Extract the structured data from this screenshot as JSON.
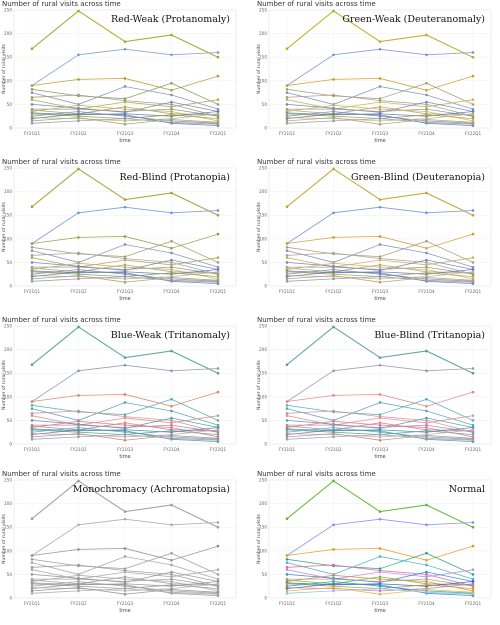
{
  "chart_data": {
    "type": "line",
    "panel_title": "Number of rural visits across time",
    "xlabel": "time",
    "ylabel": "Number of rural visits",
    "x": [
      "FY21Q1",
      "FY21Q2",
      "FY21Q3",
      "FY21Q4",
      "FY22Q1"
    ],
    "ylim": [
      0,
      250
    ],
    "yticks": [
      0,
      50,
      100,
      150,
      200,
      250
    ],
    "grid": true,
    "series": [
      {
        "values": [
          168,
          248,
          183,
          197,
          150
        ]
      },
      {
        "values": [
          90,
          155,
          167,
          155,
          160
        ]
      },
      {
        "values": [
          90,
          103,
          105,
          80,
          110
        ]
      },
      {
        "values": [
          82,
          68,
          62,
          95,
          50
        ]
      },
      {
        "values": [
          75,
          50,
          88,
          70,
          40
        ]
      },
      {
        "values": [
          65,
          70,
          58,
          50,
          25
        ]
      },
      {
        "values": [
          60,
          40,
          55,
          45,
          60
        ]
      },
      {
        "values": [
          50,
          42,
          33,
          55,
          35
        ]
      },
      {
        "values": [
          40,
          40,
          35,
          40,
          25
        ]
      },
      {
        "values": [
          38,
          30,
          45,
          30,
          28
        ]
      },
      {
        "values": [
          35,
          48,
          40,
          35,
          15
        ]
      },
      {
        "values": [
          32,
          28,
          30,
          25,
          35
        ]
      },
      {
        "values": [
          30,
          25,
          20,
          28,
          20
        ]
      },
      {
        "values": [
          25,
          35,
          25,
          15,
          10
        ]
      },
      {
        "values": [
          22,
          20,
          15,
          20,
          30
        ]
      },
      {
        "values": [
          20,
          30,
          28,
          10,
          5
        ]
      },
      {
        "values": [
          15,
          22,
          8,
          18,
          12
        ]
      },
      {
        "values": [
          10,
          15,
          20,
          12,
          8
        ]
      }
    ],
    "panels": [
      {
        "label": "Red-Weak (Protanomaly)",
        "colors": [
          "#a3a61e",
          "#7d9bd6",
          "#b39a2a",
          "#8a9a6c",
          "#7e8fbe",
          "#9b9a7e",
          "#b6a843",
          "#6f86c4",
          "#8b8f97",
          "#a3a36a",
          "#c2b04b",
          "#5c7cc1",
          "#9aa33c",
          "#80949b",
          "#b4b089",
          "#6a7fb0",
          "#a99d57",
          "#8c9ab8"
        ]
      },
      {
        "label": "Green-Weak (Deuteranomaly)",
        "colors": [
          "#b9ac1a",
          "#7d94d8",
          "#d09a1e",
          "#9aa07a",
          "#7a93be",
          "#a59d8c",
          "#c7b24a",
          "#6a88c8",
          "#8f939c",
          "#b3a772",
          "#d2b152",
          "#5a7ec4",
          "#aaa43f",
          "#7f97a0",
          "#bfb38e",
          "#6a80b2",
          "#b69f60",
          "#8a9cba"
        ]
      },
      {
        "label": "Red-Blind (Protanopia)",
        "colors": [
          "#a79d2e",
          "#6f93df",
          "#9a9a3a",
          "#9f9b82",
          "#7f8fc2",
          "#a6a08c",
          "#b3a64e",
          "#6d84c8",
          "#8e9299",
          "#a7a47a",
          "#c1ae56",
          "#5d7cc4",
          "#9ea24a",
          "#848f9a",
          "#b6b193",
          "#6c7eb2",
          "#a99a60",
          "#8a97b6"
        ]
      },
      {
        "label": "Green-Blind (Deuteranopia)",
        "colors": [
          "#bda42a",
          "#6e90df",
          "#d39a2a",
          "#a79d84",
          "#7a8fc4",
          "#aca192",
          "#c8b052",
          "#6a84ca",
          "#8f939c",
          "#b4a77c",
          "#d3af58",
          "#5b7bc6",
          "#b2a54a",
          "#81939e",
          "#c2b396",
          "#6a7eb4",
          "#b89d62",
          "#8b98b8"
        ]
      },
      {
        "label": "Blue-Weak (Tritanomaly)",
        "colors": [
          "#4fa38a",
          "#8e95b6",
          "#de7f6a",
          "#4fb0ae",
          "#5aa0a5",
          "#c89095",
          "#e08a90",
          "#4d9ab0",
          "#9a8f96",
          "#d27d8a",
          "#e8708c",
          "#3e8fb3",
          "#58aa8e",
          "#6aa7b5",
          "#d0a0a8",
          "#5c8fb2",
          "#c3847c",
          "#8aa3b0"
        ]
      },
      {
        "label": "Blue-Blind (Tritanopia)",
        "colors": [
          "#55a095",
          "#9e97a7",
          "#e68582",
          "#51b4b8",
          "#58a3ac",
          "#cc939b",
          "#ea8b97",
          "#4aa2b6",
          "#9d9298",
          "#d5808f",
          "#f0708f",
          "#3c96b9",
          "#5aa996",
          "#6eaab6",
          "#d4a3aa",
          "#5a94b7",
          "#c78680",
          "#8fa6b3"
        ]
      },
      {
        "label": "Monochromacy (Achromatopsia)",
        "colors": [
          "#9a9a9a",
          "#aaaaaa",
          "#8e8e8e",
          "#9f9f9f",
          "#a4a4a4",
          "#999999",
          "#a8a8a8",
          "#959595",
          "#9c9c9c",
          "#a1a1a1",
          "#a6a6a6",
          "#939393",
          "#9b9b9b",
          "#a3a3a3",
          "#b0b0b0",
          "#979797",
          "#8f8f8f",
          "#a9a9a9"
        ]
      },
      {
        "label": "Normal",
        "colors": [
          "#5ab82a",
          "#8a8ff0",
          "#e39b1f",
          "#27a97c",
          "#47b5c9",
          "#e25fa6",
          "#b98ee0",
          "#2d8bd8",
          "#9e9e9e",
          "#6fbf3a",
          "#f07a4a",
          "#3a5fd0",
          "#c4a21c",
          "#1fb0a0",
          "#d36ec8",
          "#4d7bd6",
          "#e8b330",
          "#80c8e0"
        ]
      }
    ]
  }
}
